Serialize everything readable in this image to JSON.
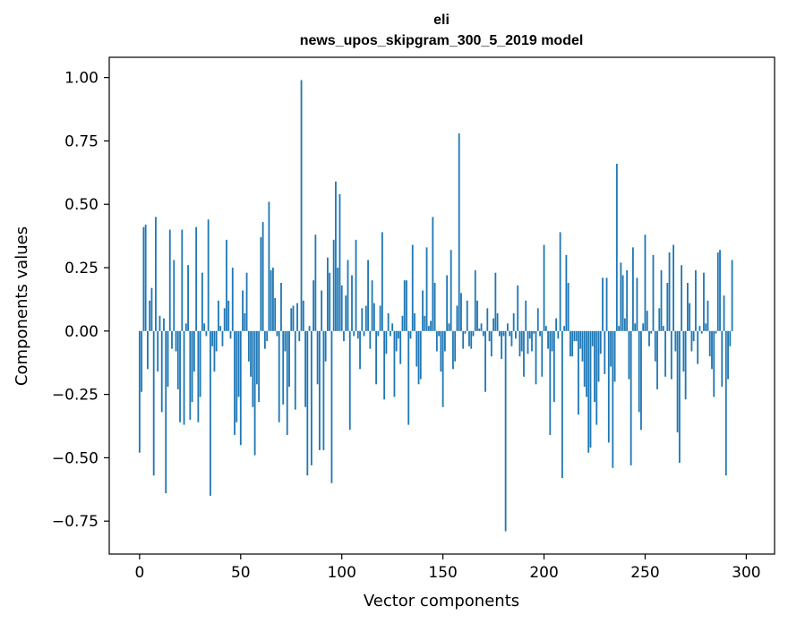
{
  "chart_data": {
    "type": "bar",
    "title": "eli",
    "subtitle": "news_upos_skipgram_300_5_2019 model",
    "xlabel": "Vector components",
    "ylabel": "Components values",
    "xlim": [
      -15,
      314
    ],
    "ylim": [
      -0.88,
      1.08
    ],
    "xticks": [
      0,
      50,
      100,
      150,
      200,
      250,
      300
    ],
    "xtick_labels": [
      "0",
      "50",
      "100",
      "150",
      "200",
      "250",
      "300"
    ],
    "yticks": [
      -0.75,
      -0.5,
      -0.25,
      0.0,
      0.25,
      0.5,
      0.75,
      1.0
    ],
    "ytick_labels": [
      "−0.75",
      "−0.50",
      "−0.25",
      "0.00",
      "0.25",
      "0.50",
      "0.75",
      "1.00"
    ],
    "bar_color": "#1f77b4",
    "grid": false,
    "x": "0..299",
    "values": [
      -0.48,
      -0.24,
      0.41,
      0.42,
      -0.15,
      0.12,
      0.17,
      -0.57,
      0.45,
      -0.16,
      0.06,
      -0.32,
      0.05,
      -0.64,
      -0.22,
      0.4,
      -0.07,
      0.28,
      -0.08,
      -0.23,
      -0.36,
      0.4,
      -0.37,
      0.03,
      0.26,
      -0.35,
      -0.28,
      -0.16,
      0.41,
      -0.36,
      -0.26,
      0.23,
      0.03,
      -0.02,
      0.44,
      -0.65,
      -0.06,
      -0.16,
      -0.08,
      0.12,
      0.02,
      -0.06,
      0.09,
      0.36,
      0.12,
      -0.03,
      0.25,
      -0.41,
      -0.36,
      -0.26,
      -0.45,
      0.16,
      0.07,
      0.23,
      -0.12,
      -0.18,
      -0.3,
      -0.49,
      -0.21,
      -0.28,
      0.37,
      0.43,
      -0.07,
      -0.04,
      0.51,
      0.24,
      0.25,
      0.13,
      -0.02,
      -0.36,
      0.19,
      -0.29,
      -0.08,
      -0.41,
      -0.22,
      0.09,
      0.1,
      -0.31,
      0.11,
      -0.04,
      0.99,
      0.12,
      -0.3,
      -0.57,
      0.02,
      -0.53,
      0.2,
      0.38,
      -0.21,
      -0.47,
      0.16,
      -0.47,
      -0.12,
      0.29,
      0.23,
      -0.6,
      0.36,
      0.59,
      0.25,
      0.54,
      0.18,
      -0.04,
      0.14,
      0.28,
      -0.39,
      0.22,
      -0.02,
      0.36,
      -0.03,
      -0.15,
      0.09,
      -0.02,
      0.1,
      0.28,
      -0.07,
      0.2,
      0.11,
      -0.21,
      -0.02,
      0.1,
      0.39,
      -0.27,
      -0.09,
      0.07,
      -0.02,
      0.03,
      -0.26,
      -0.08,
      -0.03,
      -0.13,
      0.06,
      0.2,
      0.2,
      -0.37,
      -0.03,
      0.34,
      0.07,
      -0.14,
      -0.21,
      -0.19,
      0.16,
      0.06,
      0.33,
      0.02,
      0.04,
      0.45,
      0.19,
      -0.08,
      -0.02,
      -0.16,
      -0.3,
      -0.08,
      0.22,
      0.03,
      0.32,
      -0.15,
      -0.12,
      0.1,
      0.78,
      0.15,
      -0.07,
      -0.01,
      0.12,
      -0.06,
      -0.07,
      -0.02,
      0.24,
      0.12,
      0.01,
      0.03,
      -0.02,
      -0.24,
      0.09,
      -0.04,
      -0.1,
      0.05,
      0.23,
      0.07,
      -0.02,
      -0.11,
      -0.02,
      -0.79,
      0.03,
      -0.02,
      -0.06,
      0.07,
      -0.03,
      0.18,
      -0.1,
      -0.08,
      -0.18,
      0.12,
      -0.09,
      -0.03,
      -0.08,
      -0.01,
      -0.21,
      0.09,
      -0.02,
      -0.18,
      0.34,
      0.02,
      -0.07,
      -0.41,
      -0.08,
      -0.28,
      0.05,
      -0.03,
      0.39,
      -0.58,
      0.02,
      0.3,
      0.19,
      -0.1,
      -0.1,
      -0.04,
      -0.04,
      -0.33,
      -0.07,
      -0.12,
      -0.22,
      -0.26,
      -0.48,
      -0.46,
      -0.06,
      -0.28,
      -0.37,
      -0.2,
      -0.09,
      0.21,
      -0.17,
      0.21,
      -0.44,
      -0.14,
      -0.54,
      -0.2,
      0.66,
      0.02,
      0.27,
      0.22,
      0.05,
      0.24,
      -0.19,
      -0.53,
      0.33,
      0.03,
      0.21,
      -0.32,
      -0.39,
      0.03,
      0.38,
      0.08,
      -0.06,
      -0.01,
      0.3,
      -0.12,
      -0.23,
      0.09,
      0.24,
      0.02,
      -0.18,
      0.19,
      0.31,
      -0.19,
      0.34,
      -0.08,
      -0.4,
      -0.52,
      0.26,
      -0.16,
      -0.27,
      0.19,
      0.11,
      -0.08,
      -0.04,
      0.24,
      -0.13,
      0.02,
      -0.01,
      0.23,
      0.03,
      0.12,
      -0.1,
      -0.15,
      -0.26,
      -0.01,
      0.31,
      0.32,
      -0.22,
      0.14,
      -0.57,
      -0.19,
      -0.06,
      0.28
    ]
  }
}
